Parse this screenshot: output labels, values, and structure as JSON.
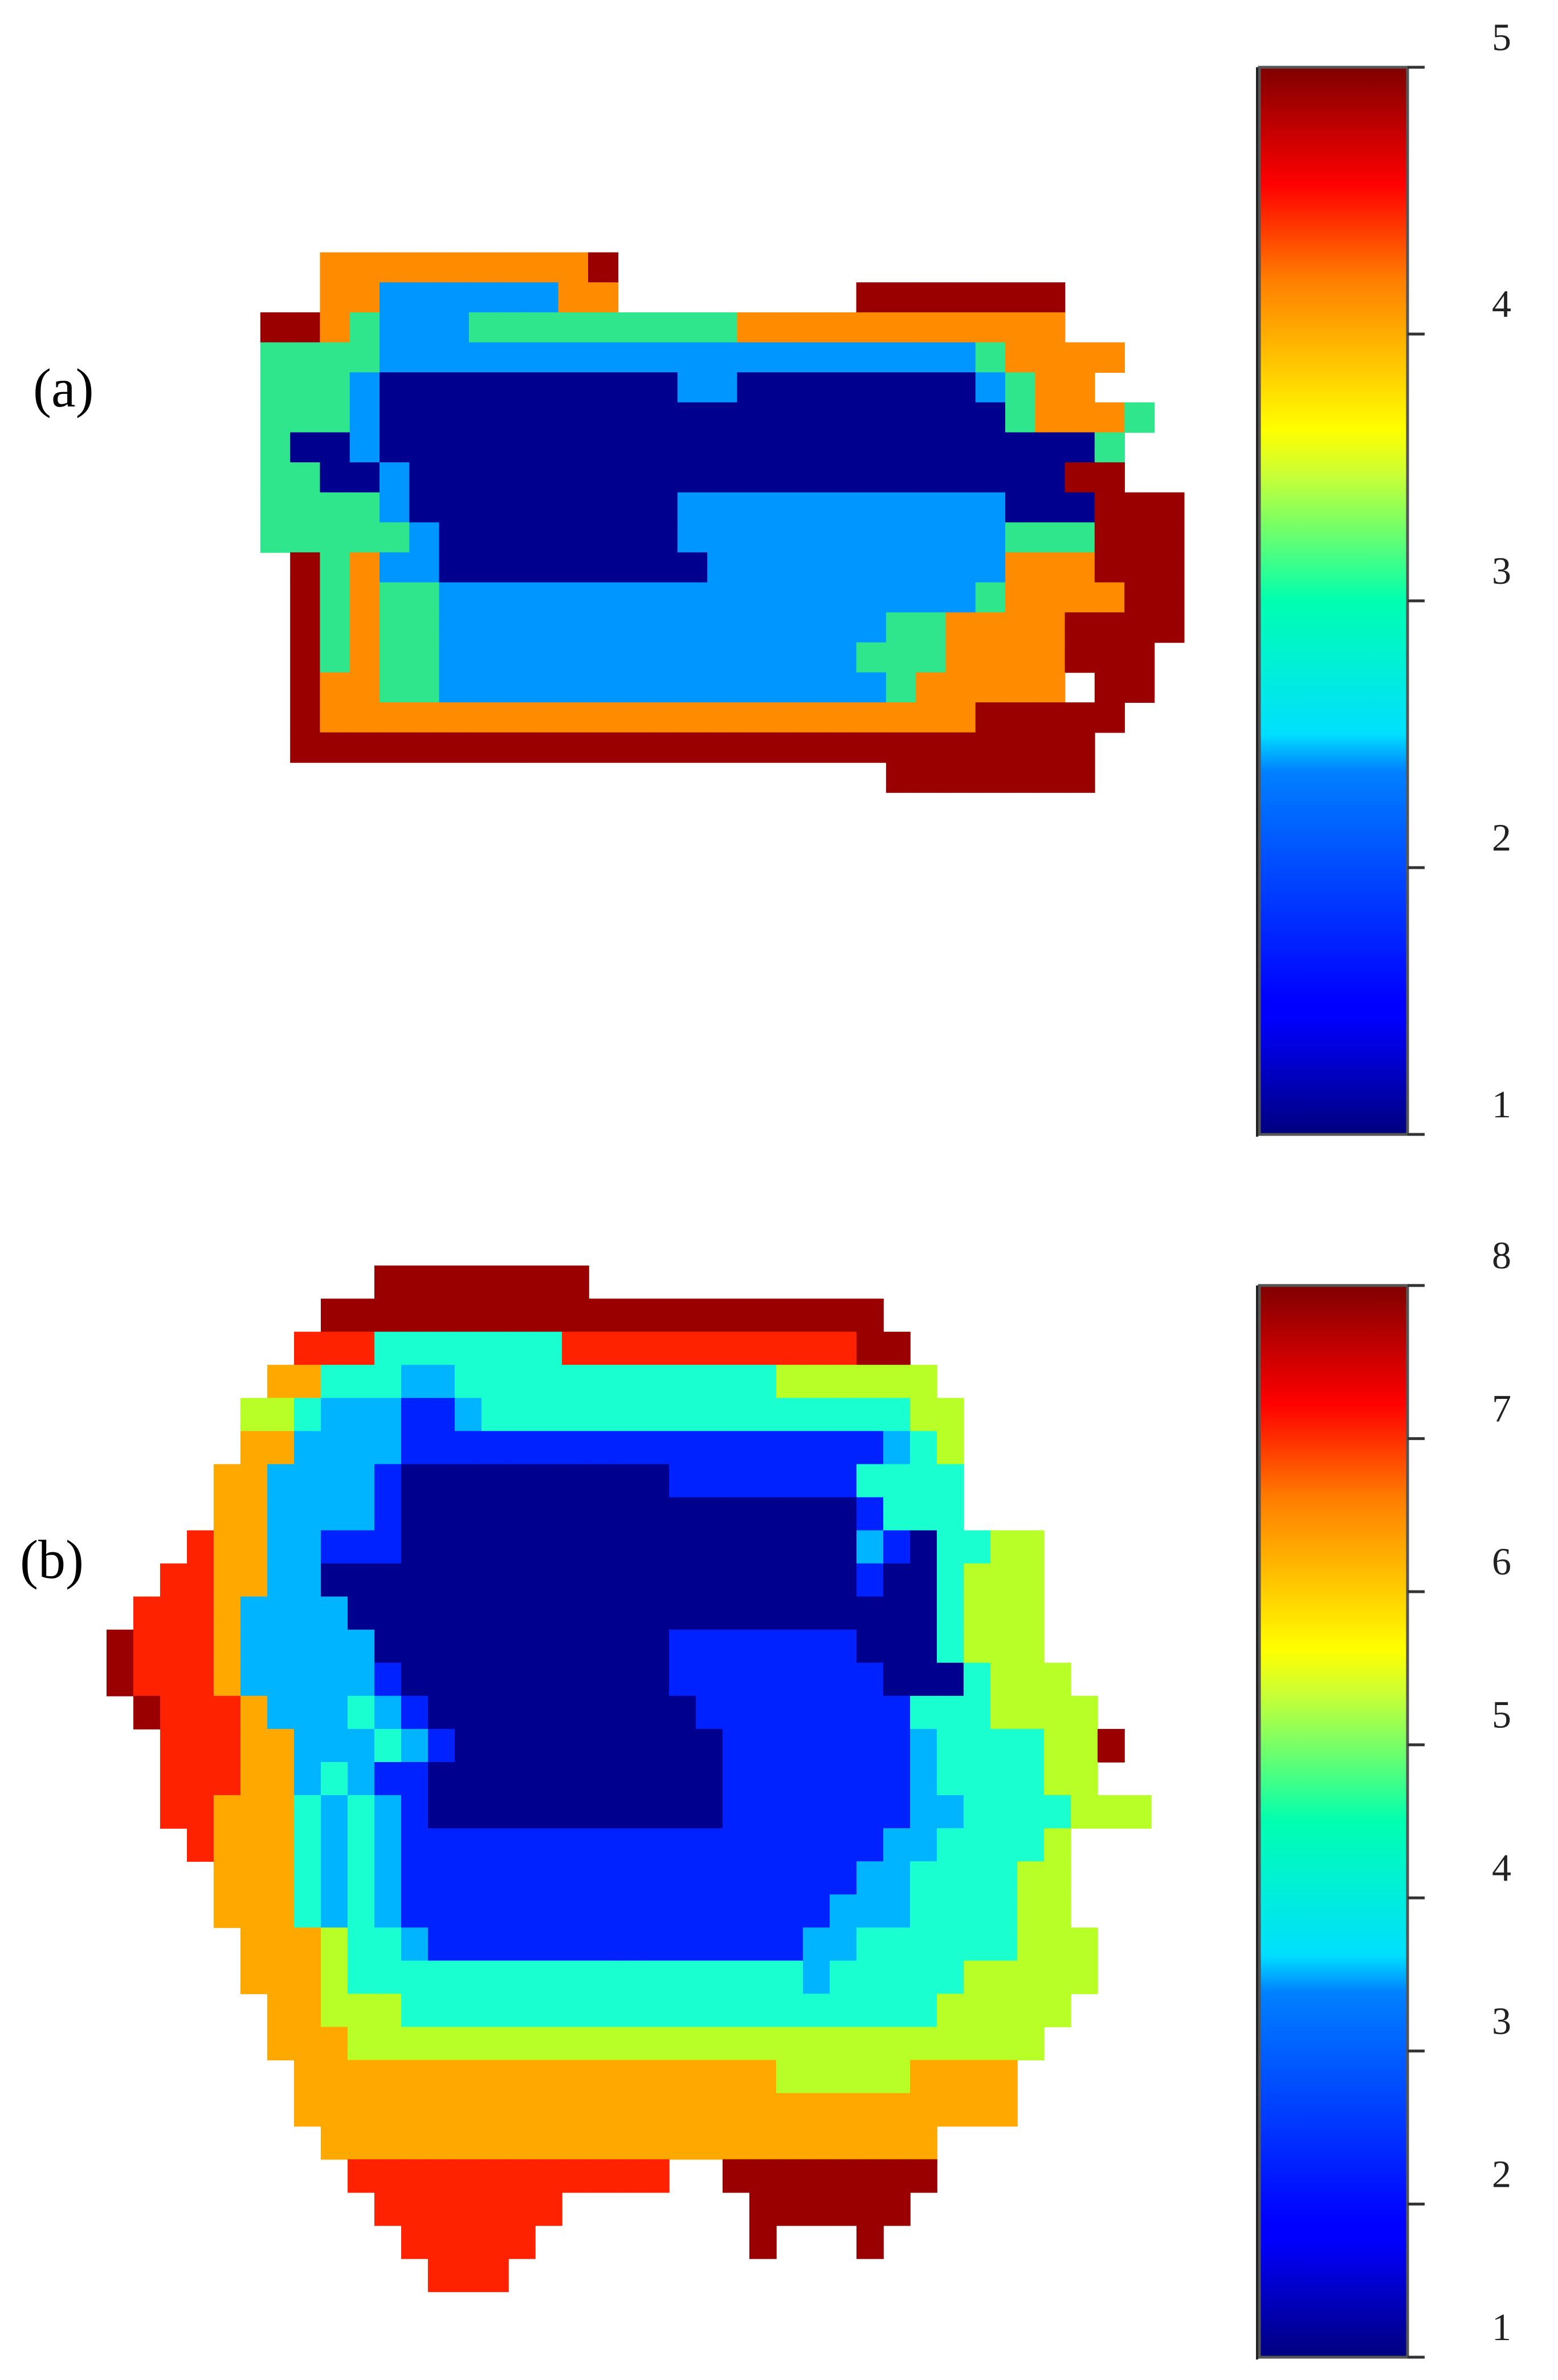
{
  "chart_data": [
    {
      "type": "heatmap",
      "panel_label": "(a)",
      "colorscale": "jet",
      "colorbar": {
        "min": 1,
        "max": 5,
        "ticks": [
          1,
          2,
          3,
          4,
          5
        ]
      },
      "level_colors": {
        "1": "#00008f",
        "2": "#0096ff",
        "3": "#2fe68c",
        "4": "#ff8c00",
        "5": "#9b0000"
      },
      "grid": {
        "cols": 33,
        "rows": 17
      },
      "cells": [
        "...................................",
        ".....4444444445..................",
        ".....4422222244........5555555...",
        "...554322233333333344444444444...",
        "...33332222222222222222222234444.",
        "...3332111111111122111111112344..",
        "...333211111111111111111111134443",
        "...31121111111111111111111111113.",
        "...33112111111111111111111111155",
        "...3333211111111122222222222111555",
        "...3333321111111122222222222333555",
        "....534221111111112222222222444555",
        "....534332222222222222222223444455",
        "....534332222222222222223344445555",
        "....53433222222222222223334444555.",
        "....54433222222222222222344444.55.",
        "....5444444444444444444444455555..",
        "....555555555555555555555555555...",
        "........................5555555..."
      ]
    },
    {
      "type": "heatmap",
      "panel_label": "(b)",
      "colorscale": "jet",
      "colorbar": {
        "min": 1,
        "max": 8,
        "ticks": [
          1,
          2,
          3,
          4,
          5,
          6,
          7,
          8
        ]
      },
      "level_colors": {
        "1": "#00008f",
        "2": "#0022ff",
        "3": "#00b4ff",
        "4": "#1affd0",
        "5": "#b8ff28",
        "6": "#ffa800",
        "7": "#ff2200",
        "8": "#9b0000"
      },
      "grid": {
        "cols": 38,
        "rows": 34
      },
      "cells": [
        "...........88888888....................",
        ".........888888888888888888888.........",
        "........77744444447777777777788........",
        ".......6644433444444444444555555.......",
        "......554333223444444444444444455......",
        "......663333222222222222222222345......",
        ".....6633332111111111122222224444......",
        ".....6633332111111111111111112444......",
        "....76633222111111111111111113214455...",
        "...776633111111111111111111112114555...",
        "..7776333311111111111111111111114555...",
        ".87776333331111111111122222221114555...",
        ".877763333321111111111222222221114555..",
        "..877763334321111111111222222224445555.",
        "...777663334321111111111222222234444558",
        "...77766343221111111111122222223444455.",
        "...7766643432111111111112222222334444555",
        "....766643432222222222222222223344445...",
        ".....66643432222222222222222233444455...",
        ".....66643432222222222222222333444455...",
        "......66654432222222222222233444444555..",
        "......66654444444444444444434444455555..",
        ".......665554444444444444444444455555...",
        ".......66655555555555555555555555555....",
        "........666666666666666666555556666.....",
        "........666666666666666666666666666.....",
        ".........66666666666666666666666........",
        "..........777777777777..88888888........",
        "...........7777777.......888888.........",
        "............77777........8...8..........",
        ".............777......................."
      ]
    }
  ],
  "labels": {
    "a": "(a)",
    "b": "(b)"
  }
}
